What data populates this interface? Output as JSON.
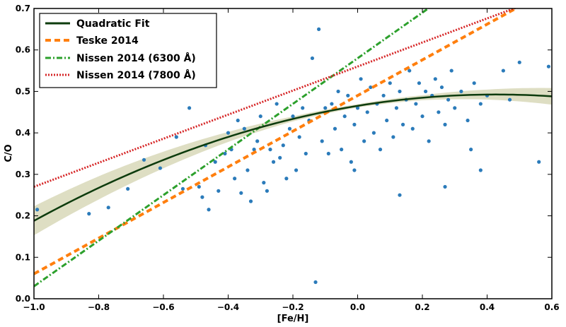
{
  "chart_data": {
    "type": "scatter",
    "xlabel": "[Fe/H]",
    "ylabel": "C/O",
    "xlim": [
      -1.0,
      0.6
    ],
    "ylim": [
      0.0,
      0.7
    ],
    "x_ticks": [
      -1.0,
      -0.8,
      -0.6,
      -0.4,
      -0.2,
      0.0,
      0.2,
      0.4,
      0.6
    ],
    "x_tick_labels": [
      "−1.0",
      "−0.8",
      "−0.6",
      "−0.4",
      "−0.2",
      "0.0",
      "0.2",
      "0.4",
      "0.6"
    ],
    "y_ticks": [
      0.0,
      0.1,
      0.2,
      0.3,
      0.4,
      0.5,
      0.6,
      0.7
    ],
    "y_tick_labels": [
      "0.0",
      "0.1",
      "0.2",
      "0.3",
      "0.4",
      "0.5",
      "0.6",
      "0.7"
    ],
    "legend_position": "upper-left",
    "colors": {
      "points": "#2b7bba",
      "fit": "#0d3b0d",
      "band": "#d8d8b9",
      "teske": "#ff7f0e",
      "nissen6300": "#2ca02c",
      "nissen7800": "#d62728"
    },
    "series": [
      {
        "name": "Quadratic Fit",
        "kind": "curve",
        "coeffs": [
          0.4652,
          0.1278,
          -0.1494
        ]
      },
      {
        "name": "Teske 2014",
        "kind": "line",
        "slope": 0.43,
        "intercept": 0.49
      },
      {
        "name": "Nissen 2014 (6300 Å)",
        "kind": "line",
        "slope": 0.55,
        "intercept": 0.58
      },
      {
        "name": "Nissen 2014 (7800 Å)",
        "kind": "line",
        "slope": 0.29,
        "intercept": 0.56
      }
    ],
    "band_halfwidth_at": {
      "x": [
        -1.0,
        -0.8,
        -0.6,
        -0.4,
        -0.2,
        0.0,
        0.2,
        0.4,
        0.6
      ],
      "dy": [
        0.035,
        0.028,
        0.02,
        0.012,
        0.006,
        0.004,
        0.006,
        0.012,
        0.02
      ]
    },
    "scatter_points": [
      [
        -0.99,
        0.215
      ],
      [
        -0.83,
        0.205
      ],
      [
        -0.77,
        0.22
      ],
      [
        -0.71,
        0.265
      ],
      [
        -0.66,
        0.335
      ],
      [
        -0.61,
        0.315
      ],
      [
        -0.56,
        0.39
      ],
      [
        -0.54,
        0.265
      ],
      [
        -0.52,
        0.46
      ],
      [
        -0.49,
        0.27
      ],
      [
        -0.48,
        0.245
      ],
      [
        -0.47,
        0.37
      ],
      [
        -0.46,
        0.215
      ],
      [
        -0.44,
        0.33
      ],
      [
        -0.43,
        0.26
      ],
      [
        -0.41,
        0.35
      ],
      [
        -0.4,
        0.4
      ],
      [
        -0.39,
        0.36
      ],
      [
        -0.38,
        0.29
      ],
      [
        -0.37,
        0.43
      ],
      [
        -0.36,
        0.255
      ],
      [
        -0.35,
        0.41
      ],
      [
        -0.34,
        0.31
      ],
      [
        -0.33,
        0.235
      ],
      [
        -0.32,
        0.36
      ],
      [
        -0.31,
        0.38
      ],
      [
        -0.3,
        0.44
      ],
      [
        -0.29,
        0.28
      ],
      [
        -0.28,
        0.26
      ],
      [
        -0.27,
        0.36
      ],
      [
        -0.26,
        0.33
      ],
      [
        -0.25,
        0.47
      ],
      [
        -0.24,
        0.34
      ],
      [
        -0.23,
        0.37
      ],
      [
        -0.22,
        0.29
      ],
      [
        -0.21,
        0.41
      ],
      [
        -0.2,
        0.44
      ],
      [
        -0.19,
        0.31
      ],
      [
        -0.18,
        0.39
      ],
      [
        -0.17,
        0.46
      ],
      [
        -0.16,
        0.35
      ],
      [
        -0.15,
        0.43
      ],
      [
        -0.14,
        0.58
      ],
      [
        -0.13,
        0.04
      ],
      [
        -0.12,
        0.65
      ],
      [
        -0.11,
        0.38
      ],
      [
        -0.1,
        0.46
      ],
      [
        -0.09,
        0.35
      ],
      [
        -0.08,
        0.47
      ],
      [
        -0.07,
        0.41
      ],
      [
        -0.06,
        0.5
      ],
      [
        -0.05,
        0.36
      ],
      [
        -0.04,
        0.44
      ],
      [
        -0.03,
        0.49
      ],
      [
        -0.02,
        0.33
      ],
      [
        -0.01,
        0.42
      ],
      [
        0.0,
        0.46
      ],
      [
        0.01,
        0.53
      ],
      [
        0.02,
        0.38
      ],
      [
        0.03,
        0.45
      ],
      [
        0.04,
        0.51
      ],
      [
        0.05,
        0.4
      ],
      [
        0.06,
        0.47
      ],
      [
        0.07,
        0.36
      ],
      [
        0.08,
        0.49
      ],
      [
        0.09,
        0.43
      ],
      [
        0.1,
        0.52
      ],
      [
        0.11,
        0.39
      ],
      [
        0.12,
        0.46
      ],
      [
        0.13,
        0.5
      ],
      [
        0.14,
        0.42
      ],
      [
        0.15,
        0.48
      ],
      [
        0.16,
        0.55
      ],
      [
        0.17,
        0.41
      ],
      [
        0.18,
        0.47
      ],
      [
        0.19,
        0.52
      ],
      [
        0.2,
        0.44
      ],
      [
        0.21,
        0.5
      ],
      [
        0.22,
        0.38
      ],
      [
        0.23,
        0.49
      ],
      [
        0.24,
        0.53
      ],
      [
        0.25,
        0.45
      ],
      [
        0.26,
        0.51
      ],
      [
        0.27,
        0.42
      ],
      [
        0.28,
        0.48
      ],
      [
        0.29,
        0.55
      ],
      [
        0.3,
        0.46
      ],
      [
        0.32,
        0.5
      ],
      [
        0.34,
        0.43
      ],
      [
        0.36,
        0.52
      ],
      [
        0.38,
        0.47
      ],
      [
        0.4,
        0.49
      ],
      [
        0.45,
        0.55
      ],
      [
        0.47,
        0.48
      ],
      [
        0.5,
        0.57
      ],
      [
        0.56,
        0.33
      ],
      [
        0.59,
        0.56
      ],
      [
        0.27,
        0.27
      ],
      [
        0.38,
        0.31
      ],
      [
        0.13,
        0.25
      ],
      [
        -0.01,
        0.31
      ],
      [
        0.35,
        0.36
      ]
    ]
  },
  "legend": {
    "items": [
      "Quadratic Fit",
      "Teske 2014",
      "Nissen 2014 (6300 Å)",
      "Nissen 2014 (7800 Å)"
    ]
  }
}
